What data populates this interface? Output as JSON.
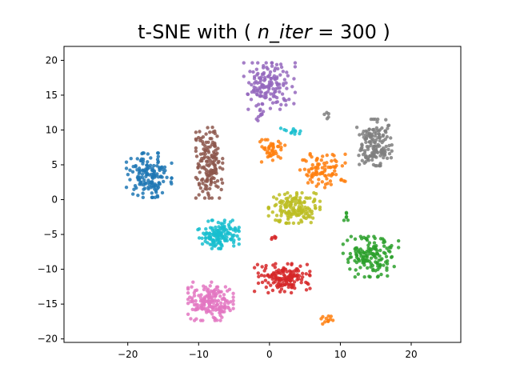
{
  "chart_data": {
    "type": "scatter",
    "title_prefix": "t-SNE with (",
    "title_math": "n_iter",
    "title_equals": " = ",
    "title_value": "300",
    "title_suffix": ")",
    "xlim": [
      -29,
      27
    ],
    "ylim": [
      -20.5,
      22
    ],
    "x_ticks": [
      -20,
      -10,
      0,
      10,
      20
    ],
    "y_ticks": [
      -20,
      -15,
      -10,
      -5,
      0,
      5,
      10,
      15,
      20
    ],
    "grid": false,
    "legend": "none",
    "clusters": [
      {
        "color": "#1f77b4",
        "center": [
          -17,
          3.5
        ],
        "spread": [
          2.2,
          2.2
        ],
        "count": 150
      },
      {
        "color": "#ff7f0e",
        "center": [
          0.2,
          7
        ],
        "spread": [
          1.4,
          1.1
        ],
        "count": 45
      },
      {
        "color": "#ff7f0e",
        "center": [
          7.5,
          4.2
        ],
        "spread": [
          2.2,
          1.7
        ],
        "count": 90
      },
      {
        "color": "#ff7f0e",
        "center": [
          8.2,
          -17.3
        ],
        "spread": [
          0.7,
          0.4
        ],
        "count": 12
      },
      {
        "color": "#2ca02c",
        "center": [
          14.3,
          -8.2
        ],
        "spread": [
          2.7,
          2.0
        ],
        "count": 150
      },
      {
        "color": "#2ca02c",
        "center": [
          10.8,
          -2.2
        ],
        "spread": [
          0.3,
          0.7
        ],
        "count": 6
      },
      {
        "color": "#d62728",
        "center": [
          1.8,
          -11.2
        ],
        "spread": [
          2.7,
          1.5
        ],
        "count": 150
      },
      {
        "color": "#d62728",
        "center": [
          0.5,
          -5.6
        ],
        "spread": [
          0.4,
          0.2
        ],
        "count": 5
      },
      {
        "color": "#9467bd",
        "center": [
          0,
          16.3
        ],
        "spread": [
          2.5,
          2.3
        ],
        "count": 150
      },
      {
        "color": "#9467bd",
        "center": [
          -1.2,
          12.5
        ],
        "spread": [
          0.5,
          0.8
        ],
        "count": 10
      },
      {
        "color": "#8c564b",
        "center": [
          -8.5,
          5.3
        ],
        "spread": [
          1.3,
          3.5
        ],
        "count": 150
      },
      {
        "color": "#e377c2",
        "center": [
          -8.3,
          -14.6
        ],
        "spread": [
          2.2,
          1.9
        ],
        "count": 180
      },
      {
        "color": "#7f7f7f",
        "center": [
          14.8,
          8.2
        ],
        "spread": [
          1.7,
          2.3
        ],
        "count": 150
      },
      {
        "color": "#7f7f7f",
        "center": [
          8,
          12.1
        ],
        "spread": [
          0.5,
          0.4
        ],
        "count": 5
      },
      {
        "color": "#bcbd22",
        "center": [
          3.5,
          -1.2
        ],
        "spread": [
          2.5,
          1.5
        ],
        "count": 150
      },
      {
        "color": "#17becf",
        "center": [
          -7.2,
          -5
        ],
        "spread": [
          2.0,
          1.4
        ],
        "count": 150
      },
      {
        "color": "#17becf",
        "center": [
          3.6,
          10
        ],
        "spread": [
          1.8,
          0.4
        ],
        "count": 12
      }
    ]
  }
}
